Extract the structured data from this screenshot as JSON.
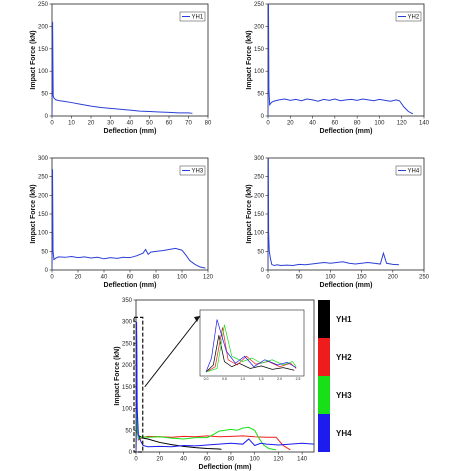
{
  "chart_data": [
    {
      "type": "line",
      "panel": "YH1",
      "xlabel": "Deflection (mm)",
      "ylabel": "Impact Force (kN)",
      "xlim": [
        0,
        80
      ],
      "ylim": [
        0,
        250
      ],
      "xticks": [
        0,
        10,
        20,
        30,
        40,
        50,
        60,
        70,
        80
      ],
      "yticks": [
        0,
        50,
        100,
        150,
        200,
        250
      ],
      "legend_position": "top-right",
      "series": [
        {
          "name": "YH1",
          "color": "#2b3fd6",
          "x": [
            0,
            0.3,
            0.6,
            1,
            1.5,
            2,
            4,
            6,
            10,
            15,
            20,
            25,
            30,
            35,
            40,
            45,
            50,
            55,
            60,
            65,
            70,
            72
          ],
          "y": [
            0,
            210,
            45,
            40,
            38,
            36,
            34,
            33,
            30,
            26,
            22,
            19,
            17,
            15,
            13,
            11,
            10,
            9,
            8,
            7,
            7,
            6
          ]
        }
      ]
    },
    {
      "type": "line",
      "panel": "YH2",
      "xlabel": "Deflection (mm)",
      "ylabel": "Impact Force (kN)",
      "xlim": [
        0,
        140
      ],
      "ylim": [
        0,
        250
      ],
      "xticks": [
        0,
        20,
        40,
        60,
        80,
        100,
        120,
        140
      ],
      "yticks": [
        0,
        50,
        100,
        150,
        200,
        250
      ],
      "legend_position": "top-right",
      "series": [
        {
          "name": "YH2",
          "color": "#2b3fd6",
          "x": [
            0,
            0.4,
            0.8,
            1.5,
            3,
            5,
            10,
            15,
            20,
            25,
            30,
            35,
            40,
            45,
            50,
            55,
            60,
            65,
            70,
            75,
            80,
            85,
            90,
            95,
            100,
            105,
            110,
            115,
            118,
            122,
            126,
            130
          ],
          "y": [
            0,
            255,
            60,
            25,
            30,
            33,
            36,
            38,
            35,
            37,
            34,
            38,
            36,
            33,
            37,
            35,
            38,
            34,
            36,
            37,
            35,
            38,
            36,
            34,
            37,
            35,
            33,
            36,
            34,
            20,
            10,
            5
          ]
        }
      ]
    },
    {
      "type": "line",
      "panel": "YH3",
      "xlabel": "Deflection (mm)",
      "ylabel": "Impact Force (kN)",
      "xlim": [
        0,
        120
      ],
      "ylim": [
        0,
        300
      ],
      "xticks": [
        0,
        20,
        40,
        60,
        80,
        100,
        120
      ],
      "yticks": [
        0,
        50,
        100,
        150,
        200,
        250,
        300
      ],
      "legend_position": "top-right",
      "series": [
        {
          "name": "YH3",
          "color": "#2b3fd6",
          "x": [
            0,
            0.4,
            0.8,
            1.5,
            3,
            5,
            10,
            15,
            20,
            25,
            30,
            35,
            40,
            45,
            50,
            55,
            60,
            65,
            70,
            72,
            74,
            76,
            80,
            85,
            90,
            95,
            100,
            103,
            106,
            110,
            114,
            118
          ],
          "y": [
            0,
            270,
            50,
            28,
            32,
            35,
            34,
            36,
            33,
            35,
            32,
            34,
            30,
            33,
            31,
            34,
            33,
            38,
            45,
            55,
            42,
            48,
            50,
            52,
            55,
            58,
            53,
            40,
            25,
            15,
            8,
            5
          ]
        }
      ]
    },
    {
      "type": "line",
      "panel": "YH4",
      "xlabel": "Deflection (mm)",
      "ylabel": "Impact Force (kN)",
      "xlim": [
        0,
        250
      ],
      "ylim": [
        0,
        300
      ],
      "xticks": [
        0,
        50,
        100,
        150,
        200,
        250
      ],
      "yticks": [
        0,
        50,
        100,
        150,
        200,
        250,
        300
      ],
      "legend_position": "top-right",
      "series": [
        {
          "name": "YH4",
          "color": "#2b3fd6",
          "x": [
            0,
            0.5,
            1,
            2,
            4,
            6,
            10,
            15,
            20,
            30,
            40,
            50,
            60,
            70,
            80,
            90,
            100,
            110,
            120,
            130,
            140,
            150,
            160,
            170,
            180,
            185,
            190,
            200,
            210
          ],
          "y": [
            0,
            300,
            100,
            50,
            30,
            15,
            12,
            14,
            12,
            13,
            12,
            15,
            14,
            16,
            18,
            20,
            18,
            20,
            22,
            18,
            16,
            18,
            20,
            18,
            16,
            45,
            18,
            15,
            14
          ]
        }
      ]
    },
    {
      "type": "line",
      "panel": "combined",
      "xlabel": "Deflection (mm)",
      "ylabel": "Impact Force (kN)",
      "xlim": [
        0,
        150
      ],
      "ylim": [
        0,
        350
      ],
      "xticks": [
        0,
        20,
        40,
        60,
        80,
        100,
        120,
        140
      ],
      "yticks": [
        0,
        50,
        100,
        150,
        200,
        250,
        300,
        350
      ],
      "colorbar_labels": [
        "YH1",
        "YH2",
        "YH3",
        "YH4"
      ],
      "colorbar_colors": [
        "#000000",
        "#ee1c1c",
        "#18e018",
        "#1c1cee"
      ],
      "series": [
        {
          "name": "YH1",
          "color": "#000000",
          "x": [
            0,
            0.5,
            1,
            2,
            4,
            6,
            10,
            20,
            30,
            40,
            50,
            60,
            70,
            72
          ],
          "y": [
            0,
            210,
            45,
            38,
            35,
            32,
            30,
            22,
            17,
            13,
            10,
            8,
            7,
            6
          ]
        },
        {
          "name": "YH2",
          "color": "#ee1c1c",
          "x": [
            0,
            0.5,
            1,
            2,
            5,
            10,
            20,
            30,
            40,
            50,
            60,
            70,
            80,
            90,
            100,
            110,
            118,
            124,
            130
          ],
          "y": [
            0,
            255,
            60,
            28,
            33,
            36,
            35,
            34,
            36,
            35,
            37,
            35,
            36,
            37,
            35,
            34,
            34,
            15,
            5
          ]
        },
        {
          "name": "YH3",
          "color": "#18e018",
          "x": [
            0,
            0.5,
            1,
            2,
            5,
            10,
            20,
            30,
            40,
            50,
            60,
            65,
            70,
            75,
            80,
            85,
            90,
            95,
            100,
            104,
            108,
            112,
            118
          ],
          "y": [
            0,
            270,
            50,
            30,
            35,
            34,
            35,
            32,
            30,
            33,
            33,
            40,
            48,
            50,
            52,
            50,
            55,
            57,
            50,
            30,
            15,
            8,
            5
          ]
        },
        {
          "name": "YH4",
          "color": "#1c1cee",
          "x": [
            0,
            0.5,
            1,
            2,
            4,
            6,
            10,
            20,
            30,
            40,
            50,
            60,
            70,
            80,
            90,
            95,
            100,
            105,
            110,
            120,
            130,
            140,
            150
          ],
          "y": [
            0,
            300,
            100,
            40,
            25,
            15,
            12,
            13,
            12,
            15,
            14,
            16,
            18,
            20,
            18,
            30,
            15,
            20,
            18,
            16,
            18,
            20,
            18
          ]
        }
      ],
      "inset": {
        "xticks": [
          "0.0",
          "0.5",
          "1.0",
          "1.5",
          "2.0",
          "2.5"
        ]
      }
    }
  ]
}
